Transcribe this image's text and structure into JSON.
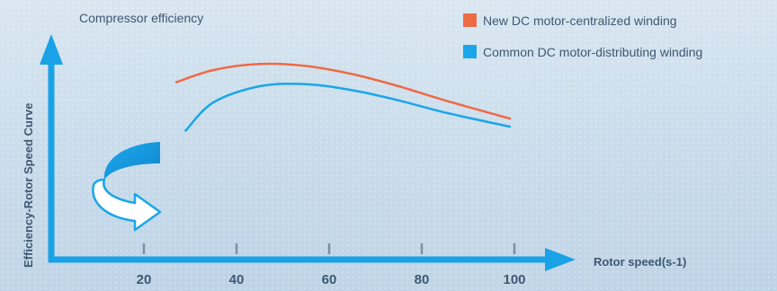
{
  "chart_data": {
    "type": "line",
    "title": "Compressor efficiency",
    "xlabel": "Rotor speed(s-1)",
    "ylabel": "Efficiency-Rotor Speed Curve",
    "x_ticks": [
      20,
      40,
      60,
      80,
      100
    ],
    "xlim": [
      0,
      100
    ],
    "grid": false,
    "legend_position": "top-right",
    "series": [
      {
        "name": "New DC motor-centralized winding",
        "color": "#ee6a45",
        "x": [
          27,
          35,
          45,
          55,
          65,
          75,
          85,
          99
        ],
        "y": [
          0.86,
          0.92,
          0.95,
          0.94,
          0.9,
          0.84,
          0.77,
          0.68
        ]
      },
      {
        "name": "Common DC motor-distributing winding",
        "color": "#1aa6e8",
        "x": [
          29,
          35,
          45,
          55,
          65,
          75,
          85,
          99
        ],
        "y": [
          0.62,
          0.76,
          0.84,
          0.85,
          0.82,
          0.77,
          0.71,
          0.64
        ]
      }
    ]
  },
  "axis_color": "#19a2e6",
  "tick_color": "#7e8fa3",
  "icon": "curved-arrow-icon"
}
